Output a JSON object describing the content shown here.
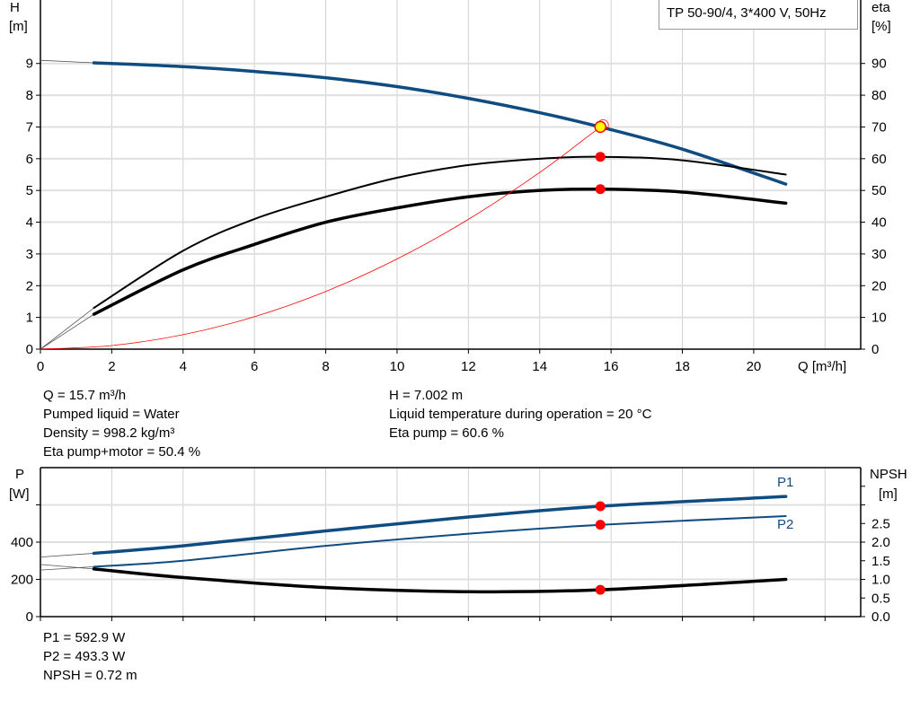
{
  "title": "TP 50-90/4, 3*400 V, 50Hz",
  "colors": {
    "blue": "#0f4c81",
    "black": "#000000",
    "red": "#ff0000",
    "duty": "#ffff00",
    "grid": "#d0d0d0"
  },
  "chart_data": [
    {
      "type": "line",
      "xlabel": "Q [m³/h]",
      "ylabel_left": "H\n[m]",
      "ylabel_left_name": "H",
      "ylabel_left_unit": "[m]",
      "ylabel_right_name": "eta",
      "ylabel_right_unit": "[%]",
      "xlim": [
        0,
        23
      ],
      "ylim_left": [
        0,
        11
      ],
      "ylim_right": [
        0,
        110
      ],
      "xticks": [
        0,
        2,
        4,
        6,
        8,
        10,
        12,
        14,
        16,
        18,
        20
      ],
      "yticks_left": [
        0,
        1,
        2,
        3,
        4,
        5,
        6,
        7,
        8,
        9
      ],
      "yticks_right": [
        0,
        10,
        20,
        30,
        40,
        50,
        60,
        70,
        80,
        90
      ],
      "grid": true,
      "series": [
        {
          "key": "head",
          "axis": "left",
          "x": [
            1.5,
            4,
            6,
            8,
            10,
            12,
            14,
            15.7,
            18,
            20.9
          ],
          "y": [
            9.02,
            8.9,
            8.75,
            8.55,
            8.27,
            7.9,
            7.45,
            7.0,
            6.3,
            5.2
          ],
          "extrapolate_from": [
            0,
            9.1
          ]
        },
        {
          "key": "eta_pump",
          "axis": "right",
          "x": [
            1.5,
            4,
            6,
            8,
            10,
            12,
            14,
            15.7,
            18,
            20.9
          ],
          "y": [
            13,
            31,
            41,
            48,
            54,
            58,
            60,
            60.6,
            59.5,
            55
          ]
        },
        {
          "key": "eta_pump_motor",
          "axis": "right",
          "x": [
            1.5,
            4,
            6,
            8,
            10,
            12,
            14,
            15.7,
            18,
            20.9
          ],
          "y": [
            11,
            25,
            33,
            40,
            44.5,
            48,
            50,
            50.4,
            49.5,
            46
          ]
        },
        {
          "key": "system_curve",
          "axis": "left",
          "x": [
            0,
            2,
            4,
            6,
            8,
            10,
            12,
            14,
            15.7
          ],
          "y": [
            0,
            0.114,
            0.455,
            1.023,
            1.818,
            2.841,
            4.09,
            5.568,
            7.002
          ]
        }
      ],
      "duty_point": {
        "q": 15.7,
        "h": 7.002,
        "eta_pump": 60.6,
        "eta_pump_motor": 50.4
      }
    },
    {
      "type": "line",
      "ylabel_left_name": "P",
      "ylabel_left_unit": "[W]",
      "ylabel_right_name": "NPSH",
      "ylabel_right_unit": "[m]",
      "xlim": [
        0,
        23
      ],
      "ylim_left": [
        0,
        800
      ],
      "ylim_right": [
        0,
        4.0
      ],
      "yticks_left": [
        0,
        200,
        400,
        600
      ],
      "yticks_left_labels": [
        "0",
        "200",
        "400",
        ""
      ],
      "yticks_right": [
        0,
        0.5,
        1.0,
        1.5,
        2.0,
        2.5,
        3.0,
        3.5
      ],
      "yticks_right_labels": [
        "0.0",
        "0.5",
        "1.0",
        "1.5",
        "2.0",
        "2.5",
        "",
        ""
      ],
      "grid": true,
      "series": [
        {
          "key": "P1",
          "name": "P1",
          "axis": "left",
          "x": [
            1.5,
            4,
            8,
            12,
            15.7,
            20.9
          ],
          "y": [
            340,
            380,
            460,
            535,
            593,
            645
          ],
          "extrapolate_from": [
            0,
            320
          ]
        },
        {
          "key": "P2",
          "name": "P2",
          "axis": "left",
          "x": [
            1.5,
            4,
            8,
            12,
            15.7,
            20.9
          ],
          "y": [
            268,
            300,
            380,
            445,
            493,
            540
          ],
          "extrapolate_from": [
            0,
            250
          ]
        },
        {
          "key": "NPSH",
          "axis": "right",
          "x": [
            1.5,
            4,
            8,
            12,
            15.7,
            20.9
          ],
          "y": [
            1.28,
            1.05,
            0.78,
            0.67,
            0.72,
            1.0
          ],
          "extrapolate_from": [
            0,
            1.4
          ]
        }
      ],
      "duty_point": {
        "q": 15.7,
        "p1": 592.9,
        "p2": 493.3,
        "npsh": 0.72
      }
    }
  ],
  "info_top": {
    "q": "Q = 15.7 m³/h",
    "liquid": "Pumped liquid = Water",
    "density": "Density = 998.2 kg/m³",
    "eta_pm": "Eta pump+motor = 50.4 %",
    "h": "H = 7.002 m",
    "temp": "Liquid temperature during operation = 20 °C",
    "eta_p": "Eta pump = 60.6 %"
  },
  "info_bottom": {
    "p1": "P1 = 592.9 W",
    "p2": "P2 = 493.3 W",
    "npsh": "NPSH = 0.72 m"
  }
}
